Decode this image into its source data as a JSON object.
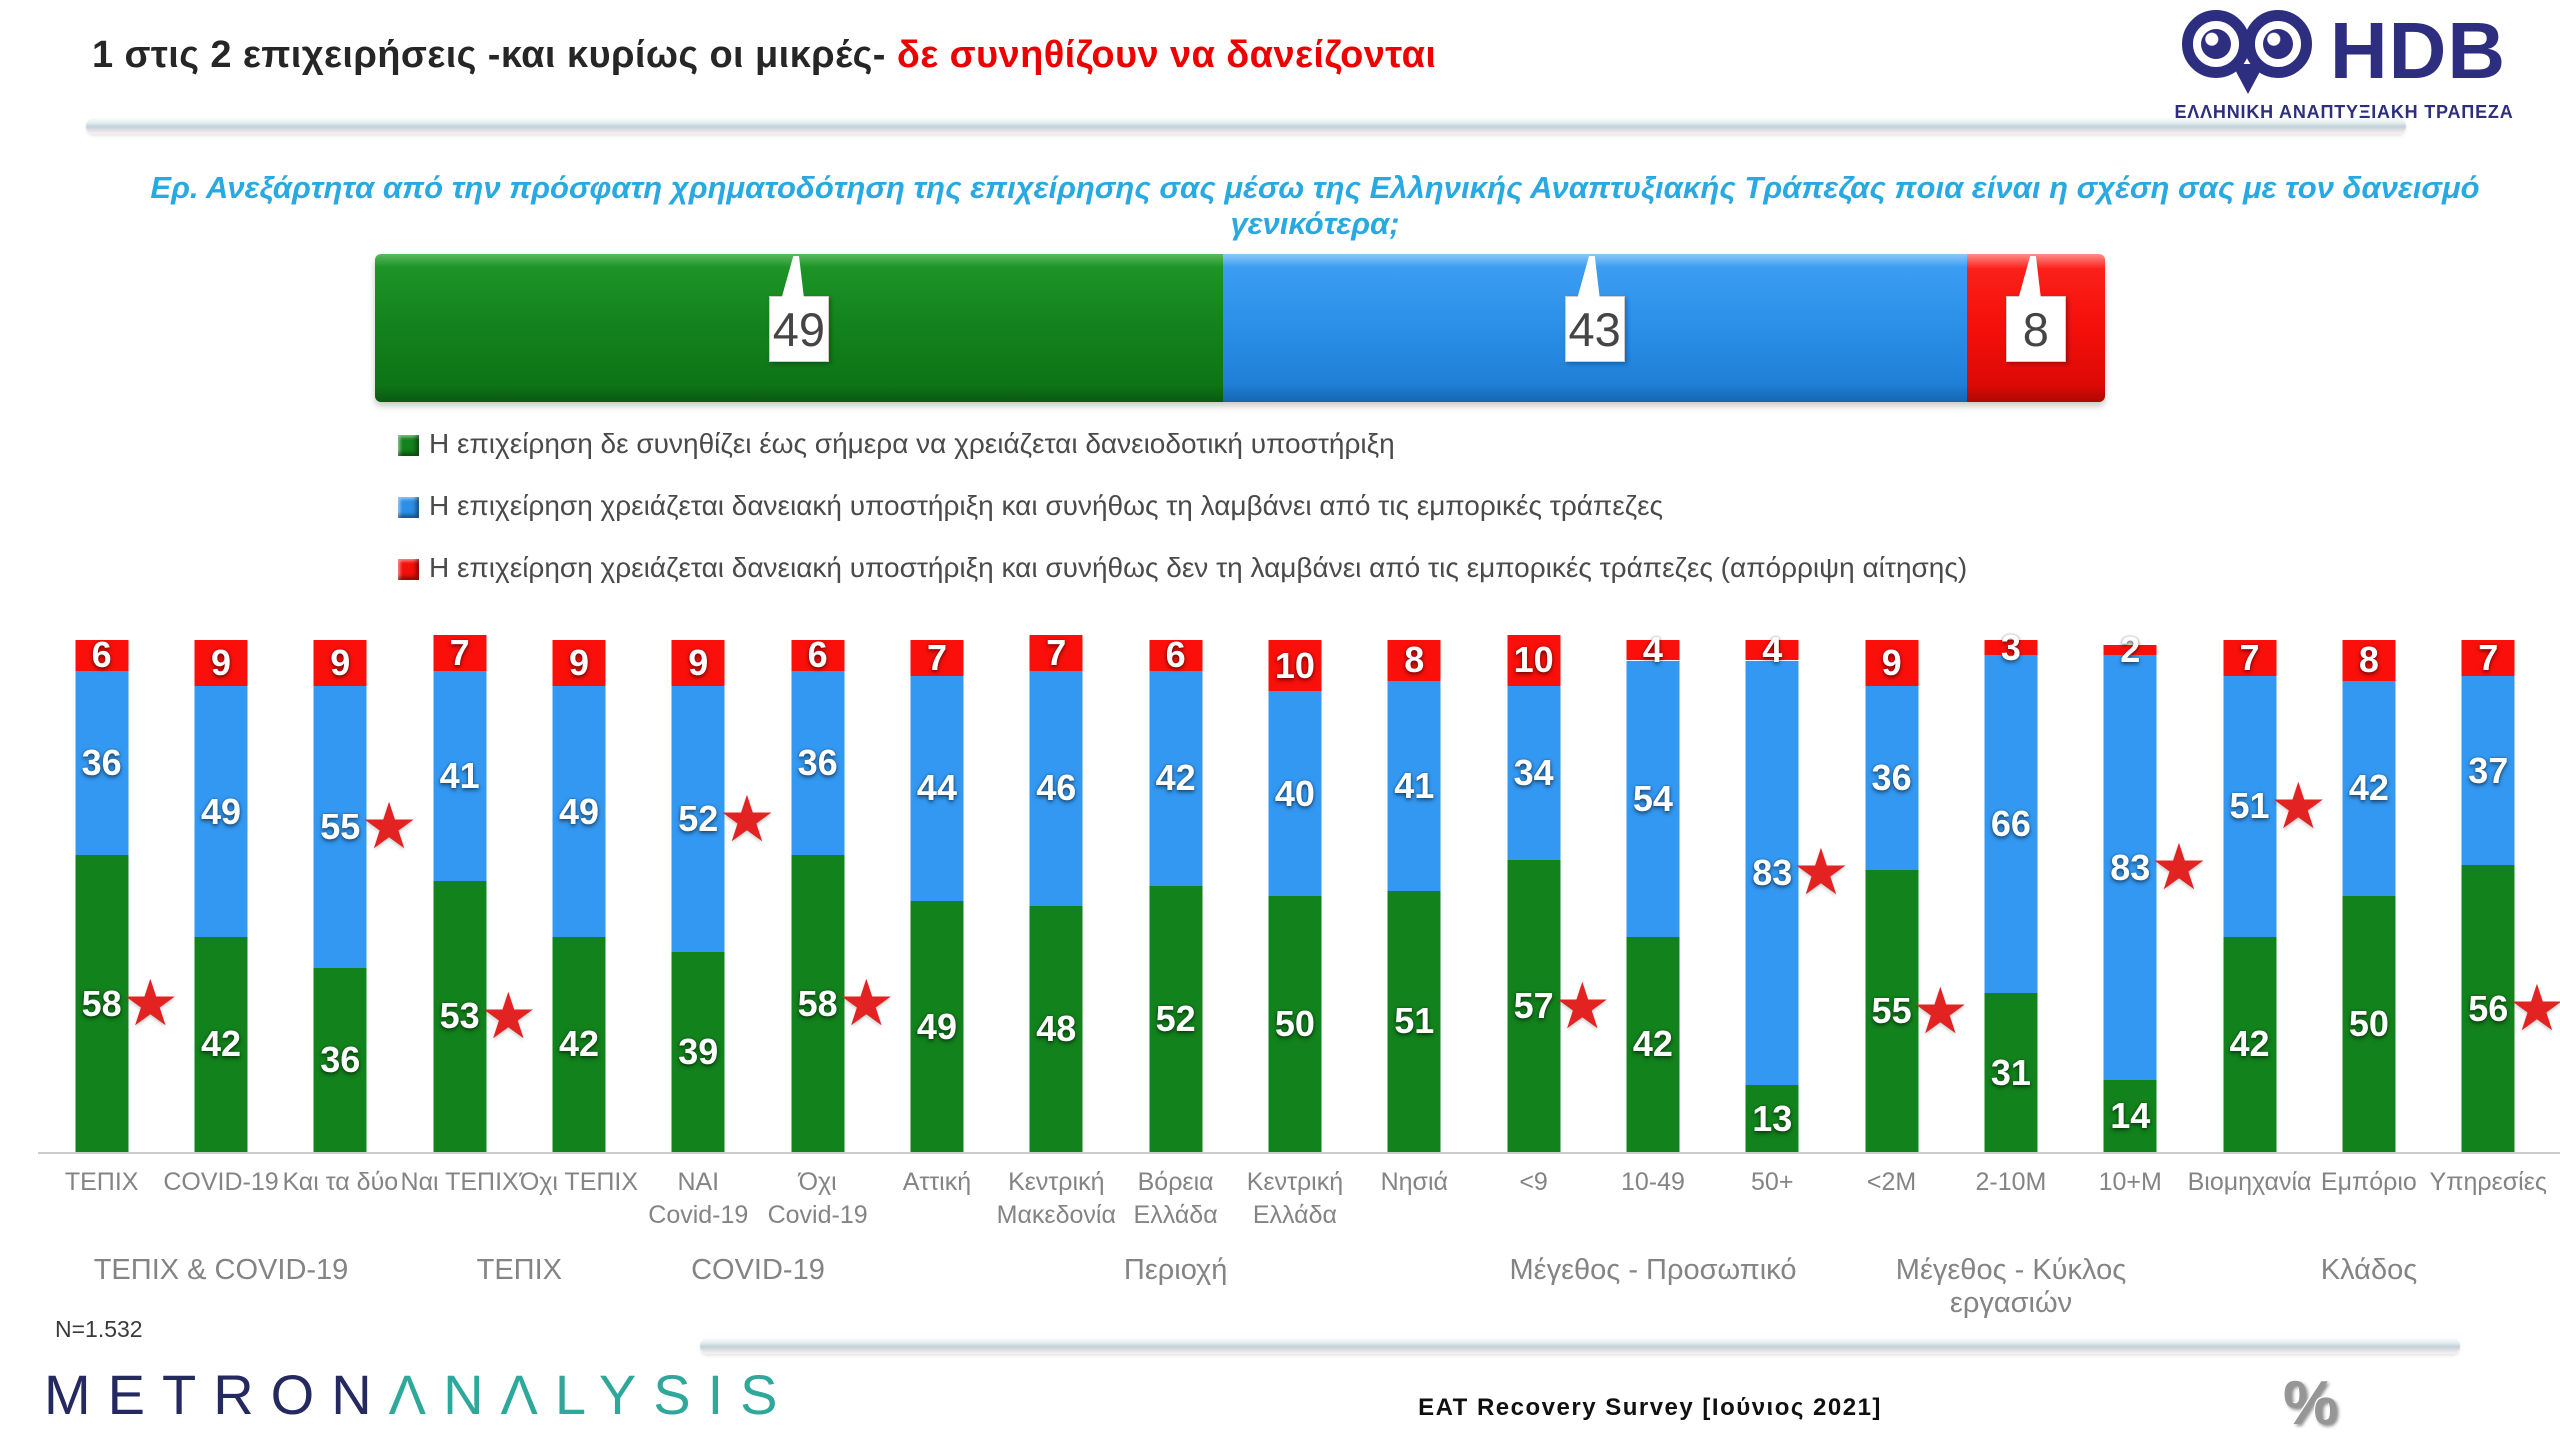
{
  "header": {
    "title_black": "1 στις 2 επιχειρήσεις -και κυρίως οι μικρές-",
    "title_red": "δε συνηθίζουν να δανείζονται"
  },
  "hdb_logo": {
    "acronym": "HDB",
    "subtitle": "ΕΛΛΗΝΙΚΗ ΑΝΑΠΤΥΞΙΑΚΗ ΤΡΑΠΕΖΑ",
    "color": "#2D2E7F"
  },
  "question": "Ερ. Ανεξάρτητα από την πρόσφατη χρηματοδότηση της επιχείρησης σας μέσω της Ελληνικής Αναπτυξιακής Τράπεζας ποια είναι η σχέση σας με τον δανεισμό γενικότερα;",
  "legend": {
    "items": [
      {
        "color": "#12821C",
        "label": "Η επιχείρηση δε συνηθίζει έως σήμερα να χρειάζεται δανειοδοτική υποστήριξη"
      },
      {
        "color": "#2B8FE8",
        "label": "Η επιχείρηση χρειάζεται δανειακή υποστήριξη και συνήθως τη λαμβάνει από τις εμπορικές τράπεζες"
      },
      {
        "color": "#F50F09",
        "label": "Η επιχείρηση χρειάζεται δανειακή υποστήριξη και συνήθως δεν τη λαμβάνει από τις εμπορικές τράπεζες (απόρριψη αίτησης)"
      }
    ]
  },
  "colors": {
    "green": "#12821C",
    "blue": "#3398F2",
    "red": "#FA0F0B",
    "star": "#E32222",
    "star_glyph": "★"
  },
  "chart_data": [
    {
      "type": "bar",
      "subtype": "stacked-horizontal-total",
      "ylim": [
        0,
        100
      ],
      "segments": [
        {
          "name": "no-loan-habit",
          "value": 49,
          "label": "49",
          "color": "#12821C"
        },
        {
          "name": "loan-from-banks",
          "value": 43,
          "label": "43",
          "color": "#2B8FE8"
        },
        {
          "name": "loan-rejected",
          "value": 8,
          "label": "8",
          "color": "#F50F09"
        }
      ]
    },
    {
      "type": "bar",
      "subtype": "stacked-vertical-grouped",
      "unit": "%",
      "ylim": [
        0,
        100
      ],
      "categories": [
        "ΤΕΠΙΧ",
        "COVID-19",
        "Και τα δύο",
        "Ναι ΤΕΠΙΧ",
        "Όχι ΤΕΠΙΧ",
        "ΝΑΙ\nCovid-19",
        "Όχι\nCovid-19",
        "Αττική",
        "Κεντρική\nΜακεδονία",
        "Βόρεια\nΕλλάδα",
        "Κεντρική\nΕλλάδα",
        "Νησιά",
        "<9",
        "10-49",
        "50+",
        "<2M",
        "2-10M",
        "10+M",
        "Βιομηχανία",
        "Εμπόριο",
        "Υπηρεσίες"
      ],
      "series": [
        {
          "name": "green",
          "values": [
            58,
            42,
            36,
            53,
            42,
            39,
            58,
            49,
            48,
            52,
            50,
            51,
            57,
            42,
            13,
            55,
            31,
            14,
            42,
            50,
            56
          ]
        },
        {
          "name": "blue",
          "values": [
            36,
            49,
            55,
            41,
            49,
            52,
            36,
            44,
            46,
            42,
            40,
            41,
            34,
            54,
            83,
            36,
            66,
            83,
            51,
            42,
            37
          ]
        },
        {
          "name": "red",
          "values": [
            6,
            9,
            9,
            7,
            9,
            9,
            6,
            7,
            7,
            6,
            10,
            8,
            10,
            4,
            4,
            9,
            3,
            2,
            7,
            8,
            7
          ]
        }
      ],
      "stars": [
        {
          "bar": 0,
          "segment": "green"
        },
        {
          "bar": 2,
          "segment": "blue"
        },
        {
          "bar": 3,
          "segment": "green"
        },
        {
          "bar": 5,
          "segment": "blue"
        },
        {
          "bar": 6,
          "segment": "green"
        },
        {
          "bar": 12,
          "segment": "green"
        },
        {
          "bar": 14,
          "segment": "blue"
        },
        {
          "bar": 15,
          "segment": "green"
        },
        {
          "bar": 17,
          "segment": "blue"
        },
        {
          "bar": 18,
          "segment": "blue"
        },
        {
          "bar": 20,
          "segment": "green"
        }
      ],
      "groups": [
        {
          "label": "ΤΕΠΙΧ & COVID-19",
          "from": 0,
          "to": 2
        },
        {
          "label": "ΤΕΠΙΧ",
          "from": 3,
          "to": 4
        },
        {
          "label": "COVID-19",
          "from": 5,
          "to": 6
        },
        {
          "label": "Περιοχή",
          "from": 7,
          "to": 11
        },
        {
          "label": "Μέγεθος - Προσωπικό",
          "from": 12,
          "to": 14
        },
        {
          "label": "Μέγεθος - Κύκλος εργασιών",
          "from": 15,
          "to": 17
        },
        {
          "label": "Κλάδος",
          "from": 18,
          "to": 20
        }
      ]
    }
  ],
  "footer": {
    "n_label": "N=1.532",
    "survey_label": "EAT Recovery Survey [Ιούνιος 2021]",
    "percent_symbol": "%",
    "metron_part1": "METRON",
    "metron_part2": "ΛNΛLYSIS"
  }
}
